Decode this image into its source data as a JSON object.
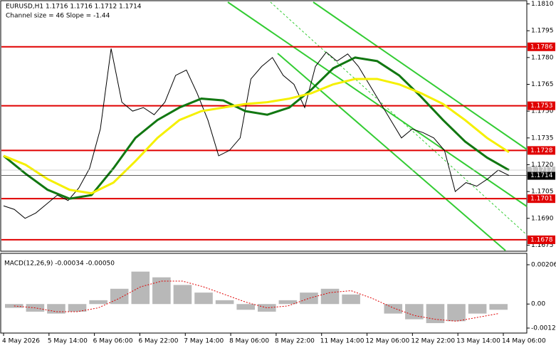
{
  "header": {
    "symbol": "EURUSD,H1  1.1716 1.1716 1.1712 1.1714",
    "channel": "Channel size = 46 Slope = -1.44",
    "macd": "MACD(12,26,9) -0.00034 -0.00050"
  },
  "chart_data": {
    "type": "line",
    "ylim": [
      1.1672,
      1.1811
    ],
    "yticks": [
      {
        "value": 1.181,
        "label": "1.1810"
      },
      1.1795,
      {
        "value": 1.178,
        "label": "1.1780"
      },
      1.1765,
      {
        "value": 1.175,
        "label": "1.1750"
      },
      1.1735,
      {
        "value": 1.172,
        "label": "1.1720"
      },
      1.1705,
      {
        "value": 1.169,
        "label": "1.1690"
      },
      1.1675
    ],
    "time_labels": [
      "4 May 2026",
      "5 May 14:00",
      "6 May 06:00",
      "6 May 22:00",
      "7 May 14:00",
      "8 May 06:00",
      "8 May 22:00",
      "11 May 14:00",
      "12 May 06:00",
      "12 May 22:00",
      "13 May 14:00",
      "14 May 06:00"
    ],
    "levels": [
      {
        "value": 1.1786,
        "label": "1.1786"
      },
      {
        "value": 1.1753,
        "label": "1.1753"
      },
      {
        "value": 1.1728,
        "label": "1.1728"
      },
      {
        "value": 1.1701,
        "label": "1.1701"
      },
      {
        "value": 1.1678,
        "label": "1.1678"
      }
    ],
    "price_tags": [
      {
        "value": 1.1717,
        "label": "1.1717",
        "color": "#c0c0c0"
      },
      {
        "value": 1.1714,
        "label": "1.1714",
        "color": "#000000"
      }
    ],
    "series": [
      {
        "name": "EURUSD",
        "color": "#000000",
        "values": [
          1.1697,
          1.1695,
          1.169,
          1.1693,
          1.1698,
          1.1703,
          1.17,
          1.1707,
          1.1718,
          1.174,
          1.1785,
          1.1755,
          1.175,
          1.1752,
          1.1748,
          1.1755,
          1.177,
          1.1773,
          1.176,
          1.1745,
          1.1725,
          1.1728,
          1.1735,
          1.1768,
          1.1775,
          1.178,
          1.177,
          1.1765,
          1.1752,
          1.1775,
          1.1783,
          1.1778,
          1.1782,
          1.1775,
          1.1765,
          1.1755,
          1.1745,
          1.1735,
          1.174,
          1.1738,
          1.1735,
          1.1728,
          1.1705,
          1.171,
          1.1708,
          1.1712,
          1.1717,
          1.1714
        ]
      },
      {
        "name": "MA fast",
        "color": "#117711",
        "values": [
          1.1725,
          1.1715,
          1.1706,
          1.1701,
          1.1703,
          1.1718,
          1.1735,
          1.1745,
          1.1752,
          1.1757,
          1.1756,
          1.175,
          1.1748,
          1.1752,
          1.1762,
          1.1774,
          1.178,
          1.1778,
          1.177,
          1.1758,
          1.1745,
          1.1733,
          1.1724,
          1.1717
        ]
      },
      {
        "name": "MA slow",
        "color": "#f5f000",
        "values": [
          1.1725,
          1.172,
          1.1712,
          1.1706,
          1.1704,
          1.171,
          1.1722,
          1.1735,
          1.1745,
          1.175,
          1.1752,
          1.1754,
          1.1755,
          1.1757,
          1.176,
          1.1765,
          1.1768,
          1.1768,
          1.1765,
          1.176,
          1.1754,
          1.1745,
          1.1735,
          1.1727
        ]
      }
    ],
    "macd": {
      "ylim": [
        -0.00126,
        0.00206
      ],
      "yticks": [
        0.00206,
        {
          "value": 0,
          "label": "0.00"
        },
        -0.00126
      ],
      "histogram": [
        -0.0002,
        -0.0004,
        -0.0005,
        -0.0004,
        0.0002,
        0.0008,
        0.0017,
        0.0014,
        0.001,
        0.0006,
        0.0002,
        -0.0003,
        -0.0004,
        0.0002,
        0.0006,
        0.0008,
        0.0005,
        0,
        -0.0005,
        -0.0008,
        -0.001,
        -0.0009,
        -0.0005,
        -0.0003
      ],
      "signal": [
        -0.0001,
        -0.0002,
        -0.0004,
        -0.0004,
        -0.0002,
        0.0003,
        0.0009,
        0.0012,
        0.0012,
        0.0009,
        0.0005,
        0.0001,
        -0.0002,
        -0.0001,
        0.0003,
        0.0006,
        0.0007,
        0.0003,
        -0.0002,
        -0.0006,
        -0.0008,
        -0.0009,
        -0.0007,
        -0.0005
      ]
    }
  }
}
